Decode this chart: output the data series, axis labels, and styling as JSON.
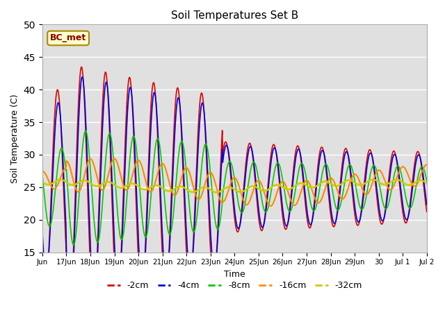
{
  "title": "Soil Temperatures Set B",
  "xlabel": "Time",
  "ylabel": "Soil Temperature (C)",
  "annotation": "BC_met",
  "ylim": [
    15,
    50
  ],
  "background_color": "#e0e0e0",
  "fig_background": "#ffffff",
  "series_colors": {
    "-2cm": "#dd0000",
    "-4cm": "#0000dd",
    "-8cm": "#00cc00",
    "-16cm": "#ff8800",
    "-32cm": "#cccc00"
  },
  "x_tick_labels": [
    "Jun",
    "17Jun",
    "18Jun",
    "19Jun",
    "20Jun",
    "21Jun",
    "22Jun",
    "23Jun",
    "24Jun",
    "25Jun",
    "26Jun",
    "27Jun",
    "28Jun",
    "29Jun",
    "30",
    "Jul 1",
    "Jul 2"
  ],
  "x_tick_positions": [
    0,
    1,
    2,
    3,
    4,
    5,
    6,
    7,
    8,
    9,
    10,
    11,
    12,
    13,
    14,
    15,
    16
  ],
  "yticks": [
    15,
    20,
    25,
    30,
    35,
    40,
    45,
    50
  ],
  "legend_labels": [
    "-2cm",
    "-4cm",
    "-8cm",
    "-16cm",
    "-32cm"
  ]
}
